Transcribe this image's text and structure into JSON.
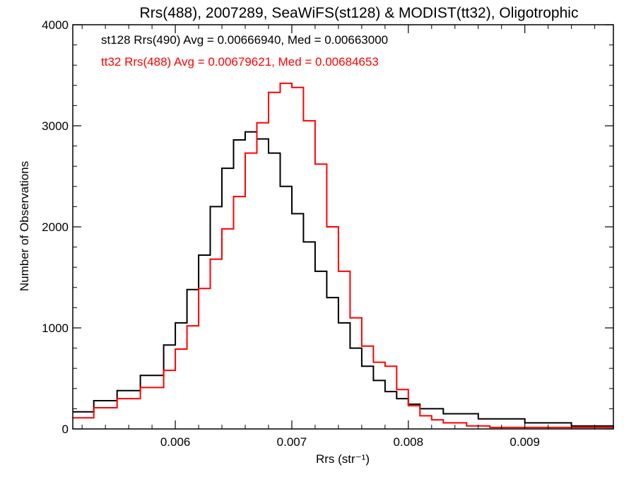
{
  "chart_data": {
    "type": "line",
    "title": "Rrs(488), 2007289, SeaWiFS(st128) & MODIST(tt32), Oligotrophic",
    "xlabel": "Rrs (str⁻¹)",
    "ylabel": "Number of Observations",
    "xlim": [
      0.00512,
      0.00976
    ],
    "ylim": [
      0,
      4000
    ],
    "xticks": [
      0.006,
      0.007,
      0.008,
      0.009
    ],
    "xtick_labels": [
      "0.006",
      "0.007",
      "0.008",
      "0.009"
    ],
    "yticks": [
      0,
      1000,
      2000,
      3000,
      4000
    ],
    "ytick_labels": [
      "0",
      "1000",
      "2000",
      "3000",
      "4000"
    ],
    "grid": false,
    "legend_position": "top-left",
    "series": [
      {
        "name": "st128 Rrs(490) Avg = 0.00666940, Med = 0.00663000",
        "color": "#000000",
        "x": [
          0.00512,
          0.0053,
          0.0055,
          0.0057,
          0.0059,
          0.006,
          0.0061,
          0.0062,
          0.0063,
          0.0064,
          0.0065,
          0.0066,
          0.0067,
          0.0068,
          0.0069,
          0.007,
          0.0071,
          0.0072,
          0.0073,
          0.0074,
          0.0075,
          0.0076,
          0.0077,
          0.0078,
          0.0079,
          0.008,
          0.0081,
          0.0083,
          0.0086,
          0.009,
          0.0094,
          0.00976
        ],
        "y": [
          170,
          280,
          380,
          530,
          830,
          1050,
          1380,
          1720,
          2200,
          2580,
          2860,
          2940,
          2870,
          2730,
          2400,
          2130,
          1850,
          1560,
          1300,
          1050,
          800,
          620,
          480,
          370,
          300,
          245,
          200,
          150,
          100,
          60,
          30,
          15
        ]
      },
      {
        "name": "tt32 Rrs(488) Avg = 0.00679621, Med = 0.00684653",
        "color": "#ff0000",
        "x": [
          0.00512,
          0.0053,
          0.0055,
          0.0057,
          0.0059,
          0.006,
          0.0061,
          0.0062,
          0.0063,
          0.0064,
          0.0065,
          0.0066,
          0.0067,
          0.0068,
          0.0069,
          0.007,
          0.0071,
          0.0072,
          0.0073,
          0.0074,
          0.0075,
          0.0076,
          0.0077,
          0.0078,
          0.0079,
          0.008,
          0.0081,
          0.0082,
          0.0083,
          0.0085,
          0.0087,
          0.00976
        ],
        "y": [
          110,
          210,
          300,
          410,
          580,
          790,
          1020,
          1390,
          1680,
          1980,
          2300,
          2730,
          3030,
          3330,
          3420,
          3380,
          3050,
          2620,
          2000,
          1560,
          1100,
          820,
          660,
          620,
          390,
          230,
          130,
          90,
          60,
          30,
          15,
          5
        ]
      }
    ]
  }
}
